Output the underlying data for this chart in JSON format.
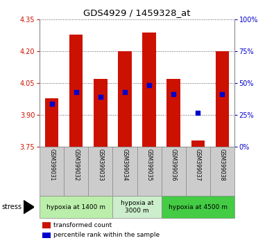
{
  "title": "GDS4929 / 1459328_at",
  "samples": [
    "GSM399031",
    "GSM399032",
    "GSM399033",
    "GSM399034",
    "GSM399035",
    "GSM399036",
    "GSM399037",
    "GSM399038"
  ],
  "bar_bottoms": [
    3.75,
    3.75,
    3.75,
    3.75,
    3.75,
    3.75,
    3.75,
    3.75
  ],
  "bar_tops": [
    3.98,
    4.28,
    4.07,
    4.2,
    4.29,
    4.07,
    3.78,
    4.2
  ],
  "percentile_values": [
    3.955,
    4.01,
    3.985,
    4.01,
    4.04,
    4.0,
    3.91,
    4.0
  ],
  "bar_color": "#cc1100",
  "dot_color": "#0000cc",
  "ylim": [
    3.75,
    4.35
  ],
  "yticks_left": [
    3.75,
    3.9,
    4.05,
    4.2,
    4.35
  ],
  "yticks_right": [
    0,
    25,
    50,
    75,
    100
  ],
  "ylabel_left_color": "#cc1100",
  "ylabel_right_color": "#0000cc",
  "grid_color": "#000000",
  "groups": [
    {
      "label": "hypoxia at 1400 m",
      "start": 0,
      "end": 3,
      "color": "#bbeeaa"
    },
    {
      "label": "hypoxia at\n3000 m",
      "start": 3,
      "end": 5,
      "color": "#cceecc"
    },
    {
      "label": "hypoxia at 4500 m",
      "start": 5,
      "end": 8,
      "color": "#44cc44"
    }
  ],
  "stress_label": "stress",
  "legend_items": [
    {
      "color": "#cc1100",
      "label": "transformed count"
    },
    {
      "color": "#0000cc",
      "label": "percentile rank within the sample"
    }
  ],
  "bar_width": 0.55,
  "dot_size": 22,
  "background_color": "#ffffff",
  "plot_bg_color": "#ffffff",
  "sample_bg_color": "#cccccc",
  "fig_width": 3.95,
  "fig_height": 3.54
}
